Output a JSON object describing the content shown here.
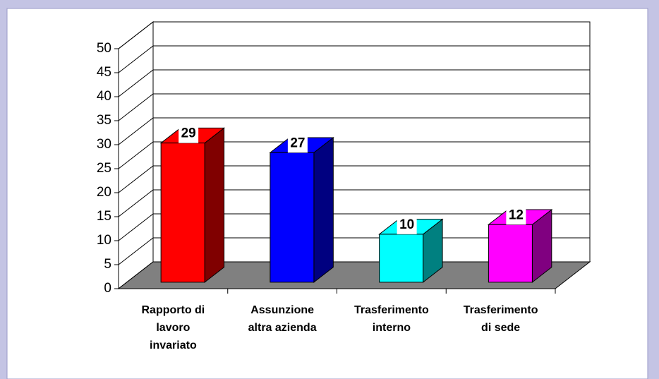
{
  "chart_data": {
    "type": "bar3d",
    "categories": [
      [
        "Rapporto di",
        "lavoro",
        "invariato"
      ],
      [
        "Assunzione",
        "altra azienda"
      ],
      [
        "Trasferimento",
        "interno"
      ],
      [
        "Trasferimento",
        "di sede"
      ]
    ],
    "series": [
      {
        "values": [
          29,
          27,
          10,
          12
        ],
        "colors": [
          "#ff0000",
          "#0000ff",
          "#00ffff",
          "#ff00ff"
        ],
        "side_colors": [
          "#800000",
          "#000080",
          "#008080",
          "#800080"
        ]
      }
    ],
    "ylim": [
      0,
      50
    ],
    "yticks": [
      0,
      5,
      10,
      15,
      20,
      25,
      30,
      35,
      40,
      45,
      50
    ],
    "grid": true,
    "floor_color": "#808080"
  }
}
